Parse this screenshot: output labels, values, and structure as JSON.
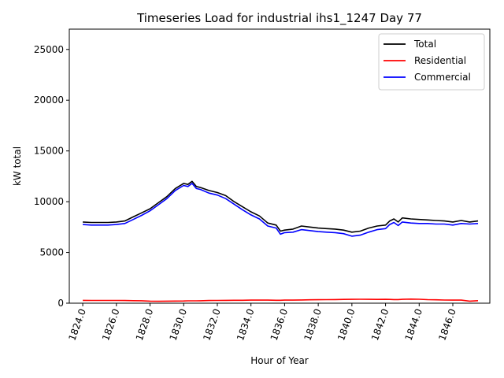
{
  "chart_data": {
    "type": "line",
    "title": "Timeseries Load for industrial ihs1_1247  Day 77",
    "xlabel": "Hour of Year",
    "ylabel": "kW total",
    "xlim": [
      1823.2,
      1848.2
    ],
    "ylim": [
      0,
      27000
    ],
    "xticks": [
      1824,
      1826,
      1828,
      1830,
      1832,
      1834,
      1836,
      1838,
      1840,
      1842,
      1844,
      1846
    ],
    "xtick_labels": [
      "1824.0",
      "1826.0",
      "1828.0",
      "1830.0",
      "1832.0",
      "1834.0",
      "1836.0",
      "1838.0",
      "1840.0",
      "1842.0",
      "1844.0",
      "1846.0"
    ],
    "yticks": [
      0,
      5000,
      10000,
      15000,
      20000,
      25000
    ],
    "ytick_labels": [
      "0",
      "5000",
      "10000",
      "15000",
      "20000",
      "25000"
    ],
    "legend": "top-right",
    "x": [
      1824.0,
      1824.5,
      1825.0,
      1825.5,
      1826.0,
      1826.5,
      1827.0,
      1827.5,
      1828.0,
      1828.5,
      1829.0,
      1829.5,
      1830.0,
      1830.25,
      1830.5,
      1830.75,
      1831.0,
      1831.5,
      1832.0,
      1832.5,
      1833.0,
      1833.5,
      1834.0,
      1834.5,
      1835.0,
      1835.5,
      1835.75,
      1836.0,
      1836.5,
      1837.0,
      1837.5,
      1838.0,
      1838.5,
      1839.0,
      1839.5,
      1840.0,
      1840.5,
      1841.0,
      1841.5,
      1842.0,
      1842.25,
      1842.5,
      1842.75,
      1843.0,
      1843.5,
      1844.0,
      1844.5,
      1845.0,
      1845.5,
      1846.0,
      1846.5,
      1847.0,
      1847.5
    ],
    "series": [
      {
        "name": "Total",
        "color": "#000000",
        "values": [
          8000,
          7950,
          7950,
          7950,
          8000,
          8100,
          8500,
          8900,
          9300,
          9900,
          10500,
          11300,
          11800,
          11700,
          12000,
          11500,
          11400,
          11100,
          10900,
          10600,
          10000,
          9500,
          9000,
          8600,
          7900,
          7700,
          7100,
          7200,
          7300,
          7600,
          7500,
          7400,
          7350,
          7300,
          7200,
          7000,
          7100,
          7400,
          7600,
          7700,
          8100,
          8300,
          8000,
          8400,
          8300,
          8250,
          8200,
          8150,
          8100,
          8000,
          8150,
          8000,
          8100
        ]
      },
      {
        "name": "Residential",
        "color": "#ff0000",
        "values": [
          280,
          270,
          270,
          270,
          270,
          260,
          250,
          240,
          200,
          190,
          200,
          210,
          220,
          230,
          230,
          230,
          240,
          260,
          270,
          280,
          290,
          290,
          300,
          300,
          300,
          290,
          290,
          300,
          300,
          320,
          330,
          340,
          350,
          360,
          370,
          380,
          390,
          380,
          370,
          380,
          370,
          360,
          360,
          380,
          400,
          390,
          350,
          330,
          310,
          300,
          300,
          200,
          250
        ]
      },
      {
        "name": "Commercial",
        "color": "#0000ff",
        "values": [
          7750,
          7700,
          7700,
          7700,
          7750,
          7850,
          8250,
          8650,
          9100,
          9700,
          10300,
          11100,
          11600,
          11500,
          11800,
          11300,
          11200,
          10850,
          10650,
          10300,
          9750,
          9200,
          8700,
          8300,
          7600,
          7400,
          6800,
          6950,
          7000,
          7250,
          7150,
          7050,
          7000,
          6950,
          6850,
          6600,
          6700,
          7000,
          7250,
          7350,
          7750,
          7950,
          7650,
          8000,
          7900,
          7850,
          7850,
          7800,
          7800,
          7700,
          7850,
          7800,
          7850
        ]
      }
    ]
  }
}
